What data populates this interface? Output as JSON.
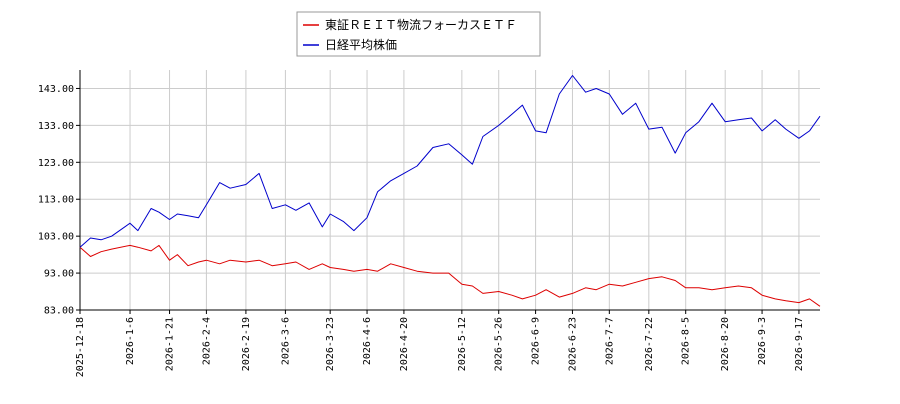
{
  "chart_data": {
    "type": "line",
    "title": "",
    "xlabel": "",
    "ylabel": "",
    "ylim": [
      83,
      148
    ],
    "yticks": [
      83,
      93,
      103,
      113,
      123,
      133,
      143
    ],
    "ytick_labels": [
      "83.00",
      "93.00",
      "103.00",
      "113.00",
      "123.00",
      "133.00",
      "143.00"
    ],
    "xlim": [
      "2025-12-18",
      "2026-09-25"
    ],
    "xticks": [
      "2025-12-18",
      "2026-1-6",
      "2026-1-21",
      "2026-2-4",
      "2026-2-19",
      "2026-3-6",
      "2026-3-23",
      "2026-4-6",
      "2026-4-20",
      "2026-5-12",
      "2026-5-26",
      "2026-6-9",
      "2026-6-23",
      "2026-7-7",
      "2026-7-22",
      "2026-8-5",
      "2026-8-20",
      "2026-9-3",
      "2026-9-17"
    ],
    "grid": true,
    "legend_position": "top-center",
    "series": [
      {
        "name": "東証ＲＥＩＴ物流フォーカスＥＴＦ",
        "color": "#dd0000",
        "points": [
          [
            "2025-12-18",
            100.0
          ],
          [
            "2025-12-22",
            97.5
          ],
          [
            "2025-12-26",
            98.8
          ],
          [
            "2025-12-30",
            99.5
          ],
          [
            "2026-01-06",
            100.5
          ],
          [
            "2026-01-09",
            100.0
          ],
          [
            "2026-01-14",
            99.0
          ],
          [
            "2026-01-17",
            100.5
          ],
          [
            "2026-01-21",
            96.5
          ],
          [
            "2026-01-24",
            98.0
          ],
          [
            "2026-01-28",
            95.0
          ],
          [
            "2026-02-01",
            96.0
          ],
          [
            "2026-02-04",
            96.5
          ],
          [
            "2026-02-09",
            95.5
          ],
          [
            "2026-02-13",
            96.5
          ],
          [
            "2026-02-19",
            96.0
          ],
          [
            "2026-02-24",
            96.5
          ],
          [
            "2026-03-01",
            95.0
          ],
          [
            "2026-03-06",
            95.5
          ],
          [
            "2026-03-10",
            96.0
          ],
          [
            "2026-03-15",
            94.0
          ],
          [
            "2026-03-20",
            95.5
          ],
          [
            "2026-03-23",
            94.5
          ],
          [
            "2026-03-28",
            94.0
          ],
          [
            "2026-04-01",
            93.5
          ],
          [
            "2026-04-06",
            94.0
          ],
          [
            "2026-04-10",
            93.5
          ],
          [
            "2026-04-15",
            95.5
          ],
          [
            "2026-04-20",
            94.5
          ],
          [
            "2026-04-25",
            93.5
          ],
          [
            "2026-05-01",
            93.0
          ],
          [
            "2026-05-07",
            93.0
          ],
          [
            "2026-05-12",
            90.0
          ],
          [
            "2026-05-16",
            89.5
          ],
          [
            "2026-05-20",
            87.5
          ],
          [
            "2026-05-26",
            88.0
          ],
          [
            "2026-05-31",
            87.0
          ],
          [
            "2026-06-04",
            86.0
          ],
          [
            "2026-06-09",
            87.0
          ],
          [
            "2026-06-13",
            88.5
          ],
          [
            "2026-06-18",
            86.5
          ],
          [
            "2026-06-23",
            87.5
          ],
          [
            "2026-06-28",
            89.0
          ],
          [
            "2026-07-02",
            88.5
          ],
          [
            "2026-07-07",
            90.0
          ],
          [
            "2026-07-12",
            89.5
          ],
          [
            "2026-07-17",
            90.5
          ],
          [
            "2026-07-22",
            91.5
          ],
          [
            "2026-07-27",
            92.0
          ],
          [
            "2026-08-01",
            91.0
          ],
          [
            "2026-08-05",
            89.0
          ],
          [
            "2026-08-10",
            89.0
          ],
          [
            "2026-08-15",
            88.5
          ],
          [
            "2026-08-20",
            89.0
          ],
          [
            "2026-08-25",
            89.5
          ],
          [
            "2026-08-30",
            89.0
          ],
          [
            "2026-09-03",
            87.0
          ],
          [
            "2026-09-08",
            86.0
          ],
          [
            "2026-09-12",
            85.5
          ],
          [
            "2026-09-17",
            85.0
          ],
          [
            "2026-09-21",
            86.0
          ],
          [
            "2026-09-25",
            84.0
          ]
        ]
      },
      {
        "name": "日経平均株価",
        "color": "#0000cc",
        "points": [
          [
            "2025-12-18",
            100.0
          ],
          [
            "2025-12-22",
            102.5
          ],
          [
            "2025-12-26",
            102.0
          ],
          [
            "2025-12-30",
            103.0
          ],
          [
            "2026-01-06",
            106.5
          ],
          [
            "2026-01-09",
            104.5
          ],
          [
            "2026-01-14",
            110.5
          ],
          [
            "2026-01-17",
            109.5
          ],
          [
            "2026-01-21",
            107.5
          ],
          [
            "2026-01-24",
            109.0
          ],
          [
            "2026-01-28",
            108.5
          ],
          [
            "2026-02-01",
            108.0
          ],
          [
            "2026-02-04",
            111.5
          ],
          [
            "2026-02-09",
            117.5
          ],
          [
            "2026-02-13",
            116.0
          ],
          [
            "2026-02-19",
            117.0
          ],
          [
            "2026-02-24",
            120.0
          ],
          [
            "2026-03-01",
            110.5
          ],
          [
            "2026-03-06",
            111.5
          ],
          [
            "2026-03-10",
            110.0
          ],
          [
            "2026-03-15",
            112.0
          ],
          [
            "2026-03-20",
            105.5
          ],
          [
            "2026-03-23",
            109.0
          ],
          [
            "2026-03-28",
            107.0
          ],
          [
            "2026-04-01",
            104.5
          ],
          [
            "2026-04-06",
            108.0
          ],
          [
            "2026-04-10",
            115.0
          ],
          [
            "2026-04-15",
            118.0
          ],
          [
            "2026-04-20",
            120.0
          ],
          [
            "2026-04-25",
            122.0
          ],
          [
            "2026-05-01",
            127.0
          ],
          [
            "2026-05-07",
            128.0
          ],
          [
            "2026-05-12",
            125.0
          ],
          [
            "2026-05-16",
            122.5
          ],
          [
            "2026-05-20",
            130.0
          ],
          [
            "2026-05-26",
            133.0
          ],
          [
            "2026-05-31",
            136.0
          ],
          [
            "2026-06-04",
            138.5
          ],
          [
            "2026-06-09",
            131.5
          ],
          [
            "2026-06-13",
            131.0
          ],
          [
            "2026-06-18",
            141.5
          ],
          [
            "2026-06-23",
            146.5
          ],
          [
            "2026-06-28",
            142.0
          ],
          [
            "2026-07-02",
            143.0
          ],
          [
            "2026-07-07",
            141.5
          ],
          [
            "2026-07-12",
            136.0
          ],
          [
            "2026-07-17",
            139.0
          ],
          [
            "2026-07-22",
            132.0
          ],
          [
            "2026-07-27",
            132.5
          ],
          [
            "2026-08-01",
            125.5
          ],
          [
            "2026-08-05",
            131.0
          ],
          [
            "2026-08-10",
            134.0
          ],
          [
            "2026-08-15",
            139.0
          ],
          [
            "2026-08-20",
            134.0
          ],
          [
            "2026-08-25",
            134.5
          ],
          [
            "2026-08-30",
            135.0
          ],
          [
            "2026-09-03",
            131.5
          ],
          [
            "2026-09-08",
            134.5
          ],
          [
            "2026-09-12",
            132.0
          ],
          [
            "2026-09-17",
            129.5
          ],
          [
            "2026-09-21",
            131.5
          ],
          [
            "2026-09-25",
            135.5
          ]
        ]
      }
    ]
  }
}
